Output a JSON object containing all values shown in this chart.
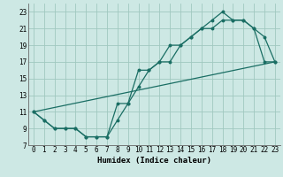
{
  "xlabel": "Humidex (Indice chaleur)",
  "bg_color": "#cde8e4",
  "grid_color": "#a0c8c0",
  "line_color": "#1a6e64",
  "line1_x": [
    0,
    1,
    2,
    3,
    4,
    5,
    6,
    7,
    8,
    9,
    10,
    11,
    12,
    13,
    14,
    15,
    16,
    17,
    18,
    19,
    20,
    21,
    22,
    23
  ],
  "line1_y": [
    11,
    10,
    9,
    9,
    9,
    8,
    8,
    8,
    12,
    12,
    16,
    16,
    17,
    17,
    19,
    20,
    21,
    21,
    22,
    22,
    22,
    21,
    17,
    17
  ],
  "line2_x": [
    0,
    1,
    2,
    3,
    4,
    5,
    6,
    7,
    8,
    9,
    10,
    11,
    12,
    13,
    14,
    15,
    16,
    17,
    18,
    19,
    20,
    21,
    22,
    23
  ],
  "line2_y": [
    11,
    10,
    9,
    9,
    9,
    8,
    8,
    8,
    10,
    12,
    14,
    16,
    17,
    19,
    19,
    20,
    21,
    22,
    23,
    22,
    22,
    21,
    20,
    17
  ],
  "line3_x": [
    0,
    23
  ],
  "line3_y": [
    11,
    17
  ],
  "xlim": [
    -0.5,
    23.5
  ],
  "ylim": [
    7,
    24
  ],
  "xticks": [
    0,
    1,
    2,
    3,
    4,
    5,
    6,
    7,
    8,
    9,
    10,
    11,
    12,
    13,
    14,
    15,
    16,
    17,
    18,
    19,
    20,
    21,
    22,
    23
  ],
  "yticks": [
    7,
    9,
    11,
    13,
    15,
    17,
    19,
    21,
    23
  ],
  "tick_fontsize": 5.5,
  "xlabel_fontsize": 6.5
}
